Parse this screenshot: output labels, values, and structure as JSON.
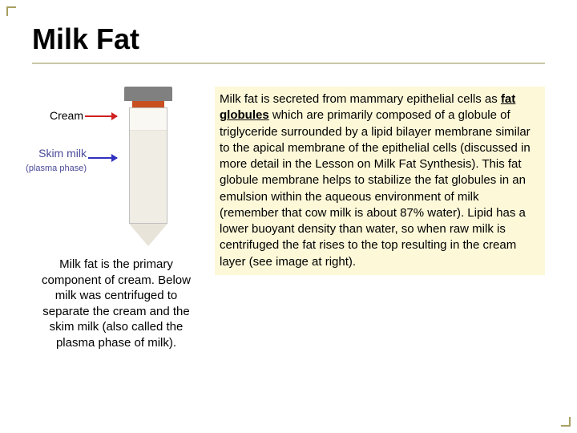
{
  "title": "Milk Fat",
  "figure": {
    "cream_label": "Cream",
    "skim_label": "Skim milk",
    "skim_sub": "(plasma phase)",
    "colors": {
      "cream_arrow": "#d02020",
      "skim_arrow": "#3030c0",
      "tube_fill": "#f0ede4",
      "cream_fill": "#faf8f2",
      "tube_top": "#808080",
      "tube_accent": "#c85020"
    }
  },
  "caption": "Milk fat is the primary component of cream. Below milk was centrifuged to separate the cream and the skim milk (also called the plasma phase of milk).",
  "body": {
    "pre": "Milk fat is secreted from mammary epithelial cells as ",
    "emph": "fat globules",
    "post": " which are primarily composed of a globule of triglyceride surrounded by a lipid bilayer membrane similar to the apical membrane of the epithelial cells (discussed in more detail in the Lesson on Milk Fat Synthesis). This fat globule membrane helps to stabilize the fat globules in an emulsion within the aqueous environment of milk (remember that cow milk is about 87% water). Lipid has a lower buoyant density than water, so when raw milk is centrifuged the fat rises to the top resulting in the cream layer (see image at right)."
  },
  "style": {
    "title_fontsize": 36,
    "body_fontsize": 15,
    "caption_fontsize": 15,
    "body_bg": "#fcf8d8",
    "rule_color": "#c8c8a8",
    "corner_color": "#a8a060",
    "background": "#ffffff"
  }
}
